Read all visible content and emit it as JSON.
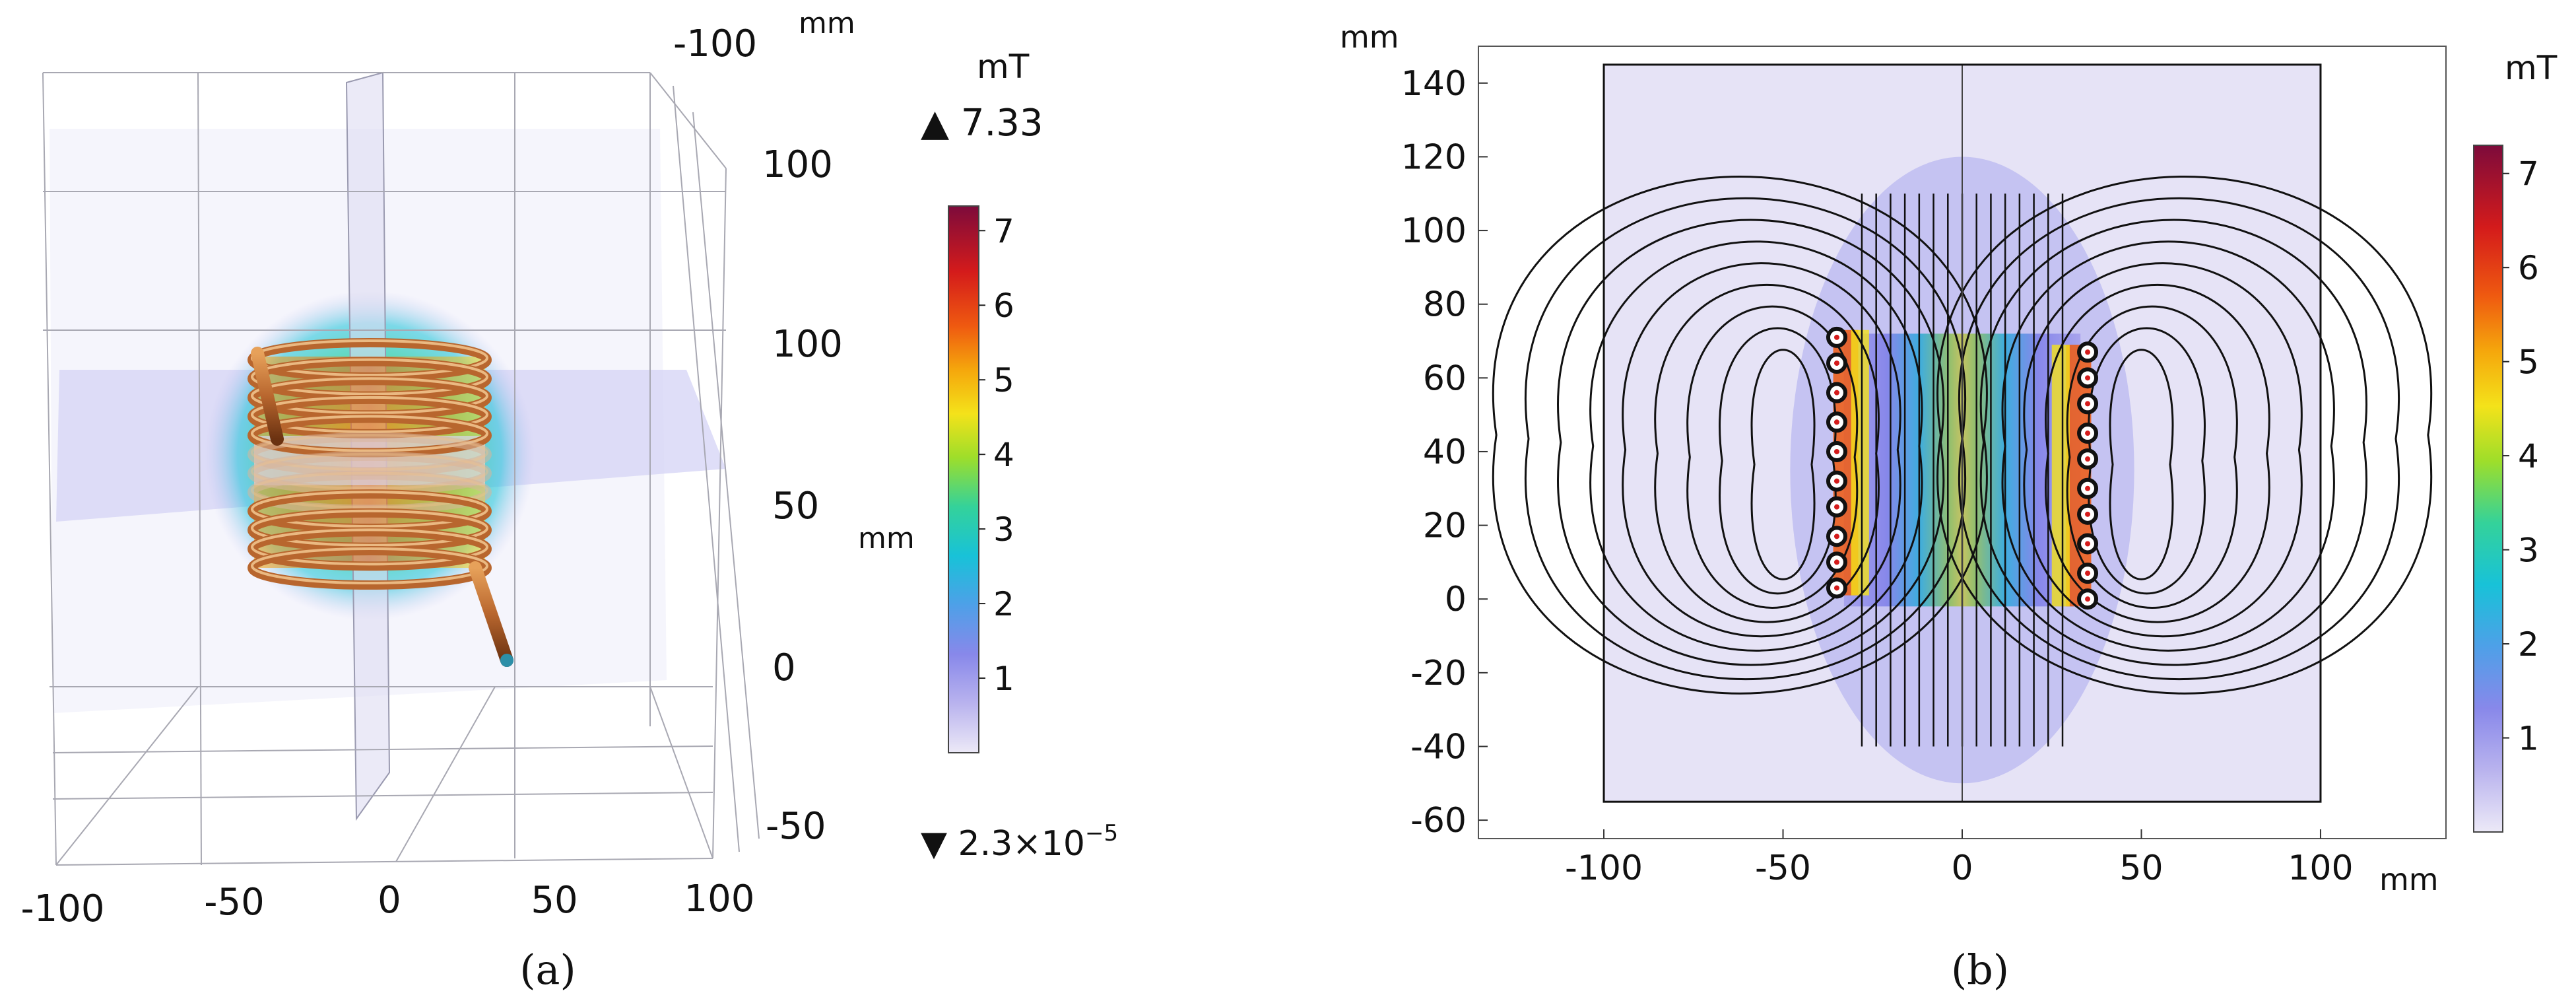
{
  "colors": {
    "background": "#ffffff",
    "text": "#111111",
    "coil_copper": "#b8662e",
    "plane_tint": "#b9b6ef",
    "streamline": "#111111",
    "colormap": [
      "#ece9f7",
      "#b9b3ee",
      "#8888ea",
      "#4ea0e8",
      "#18c2d8",
      "#34d29a",
      "#9ede2a",
      "#f4e21a",
      "#f5a70c",
      "#ef5a10",
      "#d41b1b",
      "#7d0b3b"
    ]
  },
  "chart_data": [
    {
      "id": "a",
      "type": "3d-field-slice",
      "caption": "(a)",
      "description_axes": {
        "x_ticks": [
          "-100",
          "-50",
          "0",
          "50",
          "100"
        ],
        "y_ticks": [
          "-100",
          "100"
        ],
        "z_ticks": [
          "100",
          "50",
          "0",
          "-50"
        ],
        "unit_label_top": "mm",
        "unit_label_side": "mm"
      },
      "colorbar": {
        "unit": "mT",
        "ticks": [
          1,
          2,
          3,
          4,
          5,
          6,
          7
        ],
        "tick_labels": [
          "1",
          "2",
          "3",
          "4",
          "5",
          "6",
          "7"
        ],
        "min": 0,
        "max": 7.33,
        "max_marker": "▲ 7.33",
        "min_marker": "▼ 2.3×10",
        "min_marker_exp": "−5"
      },
      "coil_turns": 12
    },
    {
      "id": "b",
      "type": "2d-field-streamline",
      "caption": "(b)",
      "xlabel": "mm",
      "ylabel": "mm",
      "xlim": [
        -135,
        135
      ],
      "ylim": [
        -65,
        150
      ],
      "x_ticks": [
        -100,
        -50,
        0,
        50,
        100
      ],
      "x_tick_labels": [
        "-100",
        "-50",
        "0",
        "50",
        "100"
      ],
      "y_ticks": [
        -60,
        -40,
        -20,
        0,
        20,
        40,
        60,
        80,
        100,
        120,
        140
      ],
      "y_tick_labels": [
        "-60",
        "-40",
        "-20",
        "0",
        "20",
        "40",
        "60",
        "80",
        "100",
        "120",
        "140"
      ],
      "domain_box": {
        "x": [
          -100,
          100
        ],
        "y": [
          -55,
          145
        ]
      },
      "conductors_left": {
        "x": -35,
        "y": [
          3,
          10,
          17,
          25,
          32,
          40,
          48,
          56,
          64,
          71
        ]
      },
      "conductors_right": {
        "x": 35,
        "y": [
          0,
          7,
          15,
          23,
          30,
          38,
          45,
          53,
          60,
          67
        ]
      },
      "colorbar": {
        "unit": "mT",
        "ticks": [
          1,
          2,
          3,
          4,
          5,
          6,
          7
        ],
        "tick_labels": [
          "1",
          "2",
          "3",
          "4",
          "5",
          "6",
          "7"
        ],
        "min": 0,
        "max": 7.3
      }
    }
  ]
}
